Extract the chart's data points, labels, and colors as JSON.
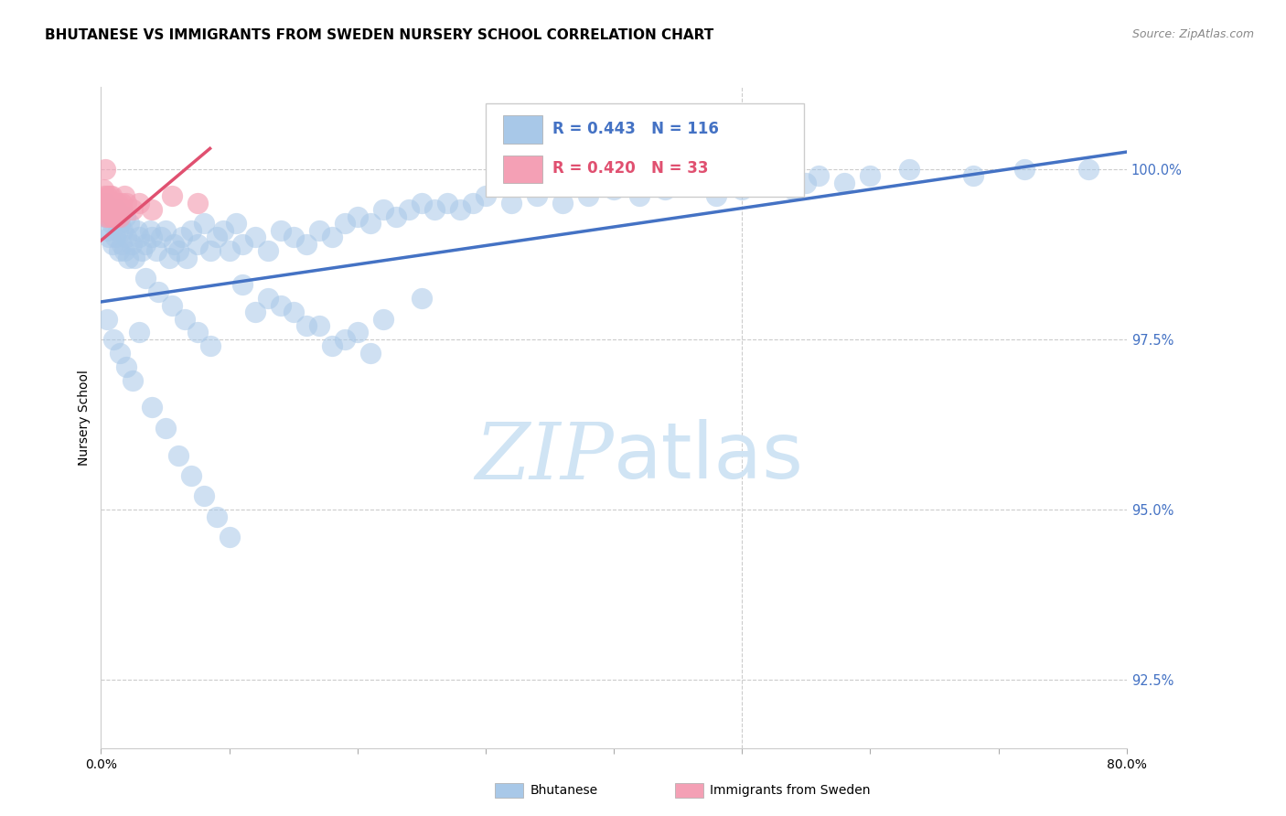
{
  "title": "BHUTANESE VS IMMIGRANTS FROM SWEDEN NURSERY SCHOOL CORRELATION CHART",
  "source": "Source: ZipAtlas.com",
  "ylabel": "Nursery School",
  "legend_blue_label": "Bhutanese",
  "legend_pink_label": "Immigrants from Sweden",
  "r_blue": 0.443,
  "n_blue": 116,
  "r_pink": 0.42,
  "n_pink": 33,
  "blue_color": "#A8C8E8",
  "pink_color": "#F4A0B5",
  "line_blue_color": "#4472C4",
  "line_pink_color": "#E05070",
  "watermark_color": "#D0E4F4",
  "xlim": [
    0.0,
    80.0
  ],
  "ylim": [
    91.5,
    101.2
  ],
  "ytick_vals": [
    92.5,
    95.0,
    97.5,
    100.0
  ],
  "ytick_labels": [
    "92.5%",
    "95.0%",
    "97.5%",
    "100.0%"
  ],
  "blue_line_x": [
    0.0,
    80.0
  ],
  "blue_line_y": [
    98.05,
    100.25
  ],
  "pink_line_x": [
    0.0,
    8.5
  ],
  "pink_line_y": [
    98.95,
    100.3
  ],
  "blue_points_x": [
    0.3,
    0.4,
    0.5,
    0.6,
    0.7,
    0.8,
    0.9,
    1.0,
    1.1,
    1.2,
    1.3,
    1.4,
    1.5,
    1.6,
    1.7,
    1.8,
    1.9,
    2.0,
    2.1,
    2.2,
    2.4,
    2.6,
    2.8,
    3.0,
    3.2,
    3.5,
    3.8,
    4.0,
    4.3,
    4.7,
    5.0,
    5.3,
    5.7,
    6.0,
    6.3,
    6.7,
    7.0,
    7.5,
    8.0,
    8.5,
    9.0,
    9.5,
    10.0,
    10.5,
    11.0,
    12.0,
    13.0,
    14.0,
    15.0,
    16.0,
    17.0,
    18.0,
    19.0,
    20.0,
    21.0,
    22.0,
    23.0,
    24.0,
    25.0,
    26.0,
    27.0,
    28.0,
    29.0,
    30.0,
    32.0,
    34.0,
    36.0,
    38.0,
    40.0,
    42.0,
    44.0,
    46.0,
    48.0,
    50.0,
    52.0,
    54.0,
    55.0,
    56.0,
    58.0,
    60.0,
    63.0,
    68.0,
    72.0,
    77.0,
    0.5,
    1.0,
    1.5,
    2.0,
    2.5,
    3.0,
    4.0,
    5.0,
    6.0,
    7.0,
    8.0,
    9.0,
    10.0,
    12.0,
    14.0,
    16.0,
    18.0,
    20.0,
    22.0,
    25.0,
    3.5,
    4.5,
    5.5,
    6.5,
    7.5,
    8.5,
    11.0,
    13.0,
    15.0,
    17.0,
    19.0,
    21.0
  ],
  "blue_points_y": [
    99.5,
    99.3,
    99.1,
    99.0,
    99.4,
    99.2,
    98.9,
    99.3,
    99.0,
    99.4,
    99.1,
    98.8,
    99.2,
    98.9,
    99.1,
    98.8,
    99.3,
    99.0,
    98.7,
    99.2,
    98.9,
    98.7,
    99.1,
    99.0,
    98.8,
    98.9,
    99.1,
    99.0,
    98.8,
    99.0,
    99.1,
    98.7,
    98.9,
    98.8,
    99.0,
    98.7,
    99.1,
    98.9,
    99.2,
    98.8,
    99.0,
    99.1,
    98.8,
    99.2,
    98.9,
    99.0,
    98.8,
    99.1,
    99.0,
    98.9,
    99.1,
    99.0,
    99.2,
    99.3,
    99.2,
    99.4,
    99.3,
    99.4,
    99.5,
    99.4,
    99.5,
    99.4,
    99.5,
    99.6,
    99.5,
    99.6,
    99.5,
    99.6,
    99.7,
    99.6,
    99.7,
    99.8,
    99.6,
    99.7,
    99.8,
    99.7,
    99.8,
    99.9,
    99.8,
    99.9,
    100.0,
    99.9,
    100.0,
    100.0,
    97.8,
    97.5,
    97.3,
    97.1,
    96.9,
    97.6,
    96.5,
    96.2,
    95.8,
    95.5,
    95.2,
    94.9,
    94.6,
    97.9,
    98.0,
    97.7,
    97.4,
    97.6,
    97.8,
    98.1,
    98.4,
    98.2,
    98.0,
    97.8,
    97.6,
    97.4,
    98.3,
    98.1,
    97.9,
    97.7,
    97.5,
    97.3
  ],
  "pink_points_x": [
    0.15,
    0.2,
    0.25,
    0.3,
    0.35,
    0.4,
    0.45,
    0.5,
    0.55,
    0.6,
    0.65,
    0.7,
    0.75,
    0.8,
    0.85,
    0.9,
    0.95,
    1.0,
    1.1,
    1.2,
    1.3,
    1.4,
    1.5,
    1.6,
    1.7,
    1.8,
    2.0,
    2.5,
    3.0,
    4.0,
    5.5,
    7.5,
    0.3
  ],
  "pink_points_y": [
    99.7,
    99.5,
    99.6,
    99.4,
    99.5,
    99.3,
    99.6,
    99.4,
    99.5,
    99.3,
    99.6,
    99.4,
    99.5,
    99.3,
    99.6,
    99.4,
    99.5,
    99.3,
    99.5,
    99.3,
    99.5,
    99.4,
    99.3,
    99.5,
    99.4,
    99.6,
    99.5,
    99.4,
    99.5,
    99.4,
    99.6,
    99.5,
    100.0
  ]
}
